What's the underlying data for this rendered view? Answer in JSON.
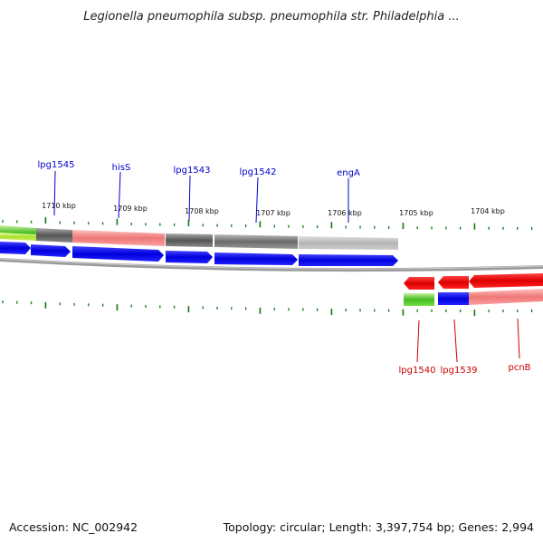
{
  "title": "Legionella pneumophila subsp. pneumophila str. Philadelphia ...",
  "footer": {
    "accession": "Accession: NC_002942",
    "summary": "Topology: circular; Length: 3,397,754 bp; Genes: 2,994"
  },
  "scale_labels": [
    "1710 kbp",
    "1709 kbp",
    "1708 kbp",
    "1707 kbp",
    "1706 kbp",
    "1705 kbp",
    "1704 kbp"
  ],
  "forward_genes": [
    {
      "label": "lpg1545"
    },
    {
      "label": "hisS"
    },
    {
      "label": "lpg1543"
    },
    {
      "label": "lpg1542"
    },
    {
      "label": "engA"
    }
  ],
  "reverse_genes": [
    {
      "label": "lpg1540"
    },
    {
      "label": "lpg1539"
    },
    {
      "label": "pcnB"
    }
  ],
  "colors": {
    "forward_label": "#0000cc",
    "reverse_label": "#cc0000",
    "forward_cds": "#0000ee",
    "reverse_cds": "#ee0000",
    "tick": "#117711",
    "backbone": "#888888"
  }
}
